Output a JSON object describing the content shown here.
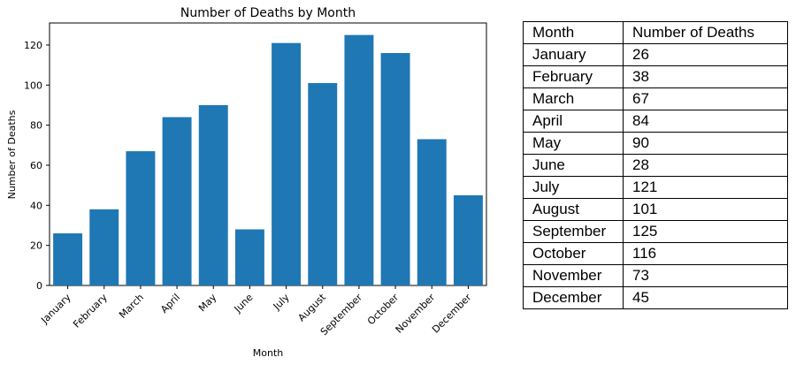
{
  "chart_data": {
    "type": "bar",
    "title": "Number of Deaths by Month",
    "xlabel": "Month",
    "ylabel": "Number of Deaths",
    "categories": [
      "January",
      "February",
      "March",
      "April",
      "May",
      "June",
      "July",
      "August",
      "September",
      "October",
      "November",
      "December"
    ],
    "values": [
      26,
      38,
      67,
      84,
      90,
      28,
      121,
      101,
      125,
      116,
      73,
      45
    ],
    "ylim": [
      0,
      131
    ],
    "yticks": [
      0,
      20,
      40,
      60,
      80,
      100,
      120
    ],
    "bar_color": "#1f77b4",
    "grid": false
  },
  "table": {
    "headers": [
      "Month",
      "Number of Deaths"
    ],
    "rows": [
      [
        "January",
        "26"
      ],
      [
        "February",
        "38"
      ],
      [
        "March",
        "67"
      ],
      [
        "April",
        "84"
      ],
      [
        "May",
        "90"
      ],
      [
        "June",
        "28"
      ],
      [
        "July",
        "121"
      ],
      [
        "August",
        "101"
      ],
      [
        "September",
        "125"
      ],
      [
        "October",
        "116"
      ],
      [
        "November",
        "73"
      ],
      [
        "December",
        "45"
      ]
    ]
  }
}
